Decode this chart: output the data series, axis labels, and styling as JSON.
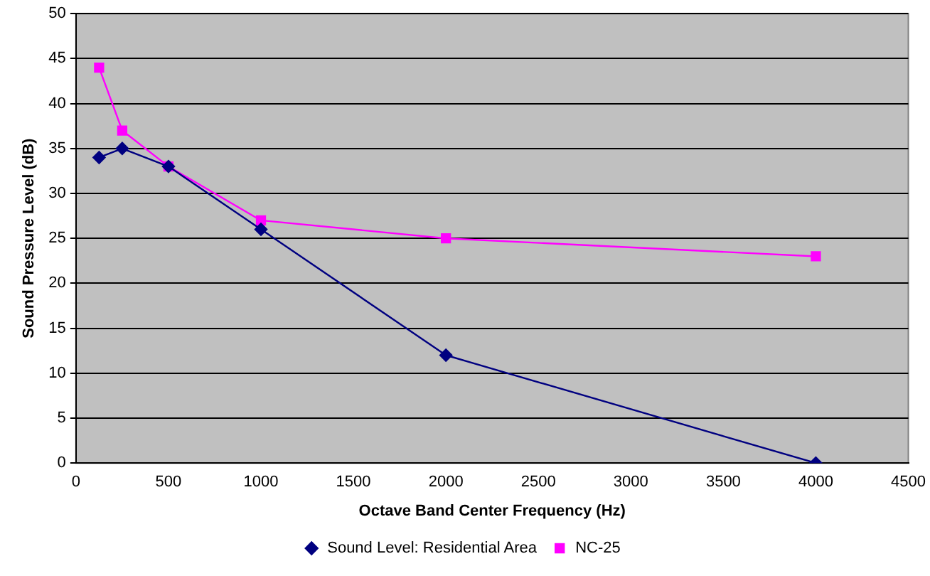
{
  "chart_data": {
    "type": "line",
    "xlabel": "Octave Band Center Frequency (Hz)",
    "ylabel": "Sound Pressure Level (dB)",
    "x": [
      125,
      250,
      500,
      1000,
      2000,
      4000
    ],
    "series": [
      {
        "name": "Sound Level: Residential Area",
        "color": "#000080",
        "marker": "diamond",
        "values": [
          34,
          35,
          33,
          26,
          12,
          0
        ]
      },
      {
        "name": "NC-25",
        "color": "#ff00ff",
        "marker": "square",
        "values": [
          44,
          37,
          33,
          27,
          25,
          23
        ]
      }
    ],
    "xlim": [
      0,
      4500
    ],
    "xticks": [
      0,
      500,
      1000,
      1500,
      2000,
      2500,
      3000,
      3500,
      4000,
      4500
    ],
    "ylim": [
      0,
      50
    ],
    "yticks": [
      0,
      5,
      10,
      15,
      20,
      25,
      30,
      35,
      40,
      45,
      50
    ],
    "grid": "y",
    "legend": "bottom",
    "line_style": "solid"
  }
}
